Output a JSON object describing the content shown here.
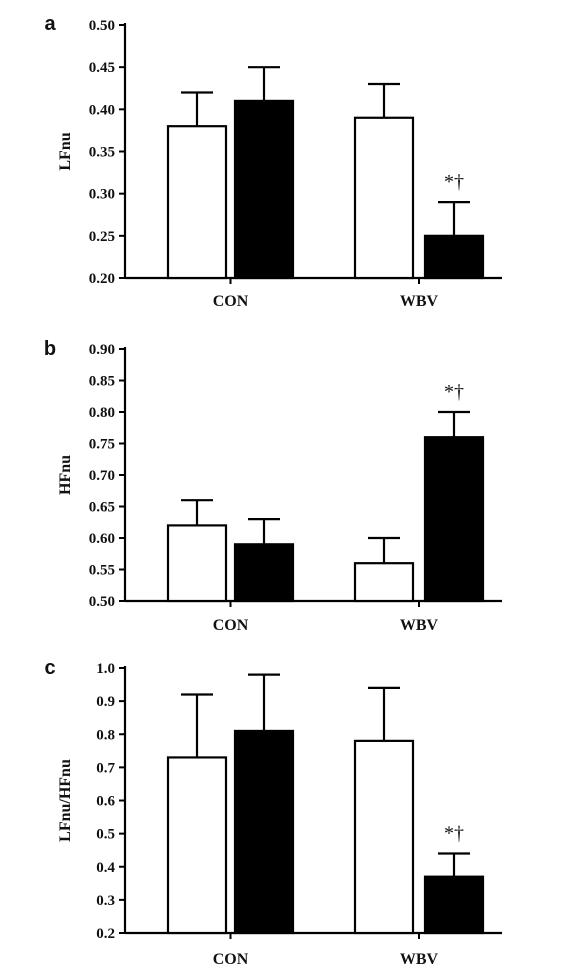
{
  "chart_data": [
    {
      "type": "bar",
      "panel_label": "a",
      "ylabel": "LFnu",
      "categories": [
        "CON",
        "WBV"
      ],
      "ylim": [
        0.2,
        0.5
      ],
      "yticks": [
        "0.20",
        "0.25",
        "0.30",
        "0.35",
        "0.40",
        "0.45",
        "0.50"
      ],
      "series": [
        {
          "fill": "#ffffff",
          "values": [
            0.38,
            0.39
          ],
          "errors": [
            0.04,
            0.04
          ]
        },
        {
          "fill": "#000000",
          "values": [
            0.41,
            0.25
          ],
          "errors": [
            0.04,
            0.04
          ]
        }
      ],
      "annotations": [
        {
          "category": 1,
          "series": 1,
          "text": "*†"
        }
      ]
    },
    {
      "type": "bar",
      "panel_label": "b",
      "ylabel": "HFnu",
      "categories": [
        "CON",
        "WBV"
      ],
      "ylim": [
        0.5,
        0.9
      ],
      "yticks": [
        "0.50",
        "0.55",
        "0.60",
        "0.65",
        "0.70",
        "0.75",
        "0.80",
        "0.85",
        "0.90"
      ],
      "series": [
        {
          "fill": "#ffffff",
          "values": [
            0.62,
            0.56
          ],
          "errors": [
            0.04,
            0.04
          ]
        },
        {
          "fill": "#000000",
          "values": [
            0.59,
            0.76
          ],
          "errors": [
            0.04,
            0.04
          ]
        }
      ],
      "annotations": [
        {
          "category": 1,
          "series": 1,
          "text": "*†"
        }
      ]
    },
    {
      "type": "bar",
      "panel_label": "c",
      "ylabel": "LFnu/HFnu",
      "categories": [
        "CON",
        "WBV"
      ],
      "ylim": [
        0.2,
        1.0
      ],
      "yticks": [
        "0.2",
        "0.3",
        "0.4",
        "0.5",
        "0.6",
        "0.7",
        "0.8",
        "0.9",
        "1.0"
      ],
      "series": [
        {
          "fill": "#ffffff",
          "values": [
            0.73,
            0.78
          ],
          "errors": [
            0.19,
            0.16
          ]
        },
        {
          "fill": "#000000",
          "values": [
            0.81,
            0.37
          ],
          "errors": [
            0.17,
            0.07
          ]
        }
      ],
      "annotations": [
        {
          "category": 1,
          "series": 1,
          "text": "*†"
        }
      ]
    }
  ]
}
